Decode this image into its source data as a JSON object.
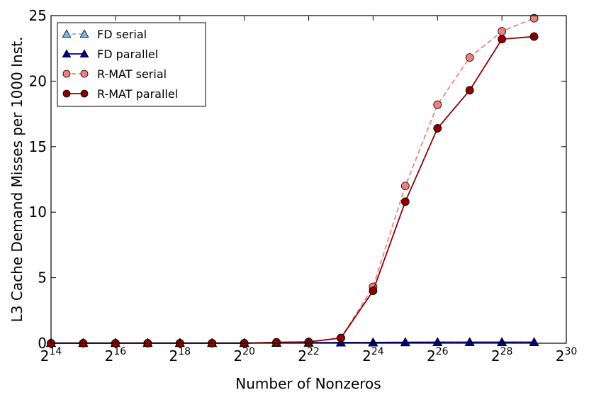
{
  "chart_data": {
    "type": "line",
    "xlabel": "Number of Nonzeros",
    "ylabel": "L3 Cache Demand Misses per 1000 Inst.",
    "xscale": "log2",
    "xlim_exp": [
      14,
      30
    ],
    "ylim": [
      0,
      25
    ],
    "x_tick_base": "2",
    "x_tick_exponents": [
      "14",
      "16",
      "18",
      "20",
      "22",
      "24",
      "26",
      "28",
      "30"
    ],
    "y_ticks": [
      "0",
      "5",
      "10",
      "15",
      "20",
      "25"
    ],
    "grid": false,
    "legend_position": "top-left",
    "series": [
      {
        "name": "FD serial",
        "color": "#7fb2e5",
        "line": "dashed",
        "marker": "triangle",
        "x_exp": [
          14,
          15,
          16,
          17,
          18,
          19,
          20,
          21,
          22,
          23,
          24,
          25,
          26,
          27,
          28,
          29
        ],
        "values": [
          0.02,
          0.02,
          0.02,
          0.02,
          0.02,
          0.02,
          0.02,
          0.03,
          0.04,
          0.05,
          0.06,
          0.07,
          0.08,
          0.08,
          0.08,
          0.08
        ]
      },
      {
        "name": "FD parallel",
        "color": "#00008b",
        "line": "solid",
        "marker": "triangle",
        "x_exp": [
          14,
          15,
          16,
          17,
          18,
          19,
          20,
          21,
          22,
          23,
          24,
          25,
          26,
          27,
          28,
          29
        ],
        "values": [
          0.02,
          0.02,
          0.02,
          0.02,
          0.02,
          0.02,
          0.02,
          0.03,
          0.04,
          0.05,
          0.06,
          0.07,
          0.08,
          0.08,
          0.08,
          0.08
        ]
      },
      {
        "name": "R-MAT serial",
        "color": "#f08080",
        "line": "dashed",
        "marker": "circle",
        "x_exp": [
          14,
          15,
          16,
          17,
          18,
          19,
          20,
          21,
          22,
          23,
          24,
          25,
          26,
          27,
          28,
          29
        ],
        "values": [
          0.0,
          0.0,
          0.0,
          0.0,
          0.0,
          0.0,
          0.0,
          0.05,
          0.1,
          0.4,
          4.3,
          12.0,
          18.2,
          21.8,
          23.8,
          24.8
        ]
      },
      {
        "name": "R-MAT parallel",
        "color": "#8b0000",
        "line": "solid",
        "marker": "circle",
        "x_exp": [
          14,
          15,
          16,
          17,
          18,
          19,
          20,
          21,
          22,
          23,
          24,
          25,
          26,
          27,
          28,
          29
        ],
        "values": [
          0.0,
          0.0,
          0.0,
          0.0,
          0.0,
          0.0,
          0.0,
          0.07,
          0.1,
          0.4,
          4.0,
          10.8,
          16.4,
          19.3,
          23.2,
          23.4
        ]
      }
    ]
  }
}
